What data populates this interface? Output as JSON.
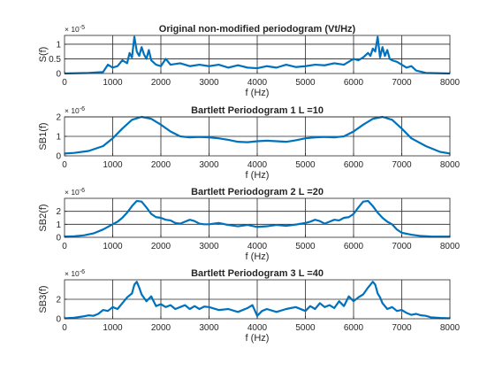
{
  "colors": {
    "line": "#0072BD",
    "axes": "#262626",
    "grid": "#262626",
    "background": "#ffffff"
  },
  "chart_data": [
    {
      "type": "line",
      "title": "Original non-modified periodogram (Vt/Hz)",
      "xlabel": "f (Hz)",
      "ylabel": "S(f)",
      "exponent": "× 10",
      "exponent_power": "-5",
      "xlim": [
        0,
        8000
      ],
      "ylim": [
        0,
        1.3
      ],
      "xticks": [
        0,
        1000,
        2000,
        3000,
        4000,
        5000,
        6000,
        7000,
        8000
      ],
      "yticks": [
        0,
        0.5,
        1
      ],
      "yticklabels": [
        "0",
        "0.5",
        "1"
      ],
      "grid": true,
      "series": [
        {
          "x": [
            0,
            500,
            800,
            900,
            1000,
            1100,
            1200,
            1300,
            1350,
            1400,
            1450,
            1500,
            1550,
            1600,
            1650,
            1700,
            1750,
            1800,
            1900,
            2000,
            2100,
            2200,
            2400,
            2600,
            2800,
            3000,
            3200,
            3400,
            3600,
            3800,
            4000,
            4200,
            4400,
            4600,
            4800,
            5000,
            5200,
            5400,
            5600,
            5800,
            6000,
            6100,
            6200,
            6300,
            6350,
            6400,
            6450,
            6500,
            6550,
            6600,
            6650,
            6700,
            6750,
            6800,
            6900,
            7000,
            7100,
            7200,
            7300,
            7500,
            8000
          ],
          "y": [
            0,
            0.02,
            0.05,
            0.3,
            0.2,
            0.25,
            0.45,
            0.35,
            0.7,
            0.55,
            1.25,
            0.75,
            0.6,
            0.9,
            0.65,
            0.5,
            0.8,
            0.45,
            0.3,
            0.25,
            0.5,
            0.3,
            0.35,
            0.25,
            0.3,
            0.25,
            0.3,
            0.2,
            0.28,
            0.2,
            0.18,
            0.25,
            0.2,
            0.3,
            0.22,
            0.25,
            0.3,
            0.28,
            0.35,
            0.3,
            0.5,
            0.45,
            0.55,
            0.7,
            0.6,
            0.85,
            0.75,
            1.25,
            0.55,
            0.9,
            0.6,
            0.8,
            0.5,
            0.45,
            0.4,
            0.3,
            0.2,
            0.25,
            0.1,
            0.02,
            0
          ]
        }
      ]
    },
    {
      "type": "line",
      "title": "Bartlett Periodogram 1 L =10",
      "xlabel": "f (Hz)",
      "ylabel": "SB1(f)",
      "exponent": "× 10",
      "exponent_power": "-6",
      "xlim": [
        0,
        8000
      ],
      "ylim": [
        0,
        2
      ],
      "xticks": [
        0,
        1000,
        2000,
        3000,
        4000,
        5000,
        6000,
        7000,
        8000
      ],
      "yticks": [
        0,
        1,
        2
      ],
      "yticklabels": [
        "0",
        "1",
        "2"
      ],
      "grid": true,
      "series": [
        {
          "x": [
            0,
            200,
            500,
            800,
            1000,
            1200,
            1400,
            1600,
            1800,
            2000,
            2200,
            2400,
            2600,
            2800,
            3000,
            3200,
            3400,
            3600,
            3800,
            4000,
            4200,
            4400,
            4600,
            4800,
            5000,
            5200,
            5400,
            5600,
            5800,
            6000,
            6200,
            6400,
            6600,
            6800,
            7000,
            7200,
            7500,
            7800,
            8000
          ],
          "y": [
            0.12,
            0.15,
            0.25,
            0.5,
            0.9,
            1.4,
            1.85,
            2.0,
            1.9,
            1.6,
            1.25,
            1.0,
            0.95,
            0.97,
            0.95,
            0.9,
            0.82,
            0.72,
            0.7,
            0.75,
            0.78,
            0.75,
            0.72,
            0.8,
            0.9,
            0.95,
            0.97,
            0.95,
            1.0,
            1.25,
            1.6,
            1.9,
            2.0,
            1.85,
            1.4,
            0.9,
            0.5,
            0.2,
            0.12
          ]
        }
      ]
    },
    {
      "type": "line",
      "title": "Bartlett Periodogram 2 L =20",
      "xlabel": "f (Hz)",
      "ylabel": "SB2(f)",
      "exponent": "× 10",
      "exponent_power": "-6",
      "xlim": [
        0,
        8000
      ],
      "ylim": [
        0,
        3
      ],
      "xticks": [
        0,
        1000,
        2000,
        3000,
        4000,
        5000,
        6000,
        7000,
        8000
      ],
      "yticks": [
        0,
        1,
        2
      ],
      "yticklabels": [
        "0",
        "1",
        "2"
      ],
      "grid": true,
      "series": [
        {
          "x": [
            0,
            200,
            400,
            600,
            800,
            1000,
            1100,
            1200,
            1300,
            1400,
            1500,
            1600,
            1700,
            1800,
            1900,
            2000,
            2100,
            2200,
            2300,
            2400,
            2500,
            2600,
            2700,
            2800,
            2900,
            3000,
            3200,
            3400,
            3600,
            3800,
            4000,
            4200,
            4400,
            4600,
            4800,
            5000,
            5100,
            5200,
            5300,
            5400,
            5500,
            5600,
            5700,
            5800,
            5900,
            6000,
            6100,
            6200,
            6300,
            6400,
            6500,
            6600,
            6700,
            6800,
            6900,
            7000,
            7200,
            7400,
            7600,
            7800,
            8000
          ],
          "y": [
            0.05,
            0.08,
            0.15,
            0.3,
            0.6,
            1.0,
            1.2,
            1.5,
            1.9,
            2.4,
            2.8,
            2.75,
            2.3,
            1.8,
            1.55,
            1.5,
            1.35,
            1.3,
            1.1,
            1.05,
            1.2,
            1.35,
            1.25,
            1.05,
            1.0,
            1.0,
            1.1,
            0.95,
            0.85,
            0.95,
            0.8,
            0.85,
            0.95,
            0.88,
            0.98,
            1.1,
            1.2,
            1.35,
            1.25,
            1.05,
            1.2,
            1.35,
            1.3,
            1.5,
            1.55,
            1.8,
            2.3,
            2.75,
            2.8,
            2.4,
            1.9,
            1.5,
            1.2,
            1.0,
            0.6,
            0.35,
            0.2,
            0.1,
            0.06,
            0.05,
            0.05
          ]
        }
      ]
    },
    {
      "type": "line",
      "title": "Bartlett Periodogram 3 L =40",
      "xlabel": "f (Hz)",
      "ylabel": "SB3(f)",
      "exponent": "× 10",
      "exponent_power": "-6",
      "xlim": [
        0,
        8000
      ],
      "ylim": [
        0,
        4
      ],
      "xticks": [
        0,
        1000,
        2000,
        3000,
        4000,
        5000,
        6000,
        7000,
        8000
      ],
      "yticks": [
        0,
        2
      ],
      "yticklabels": [
        "0",
        "2"
      ],
      "grid": true,
      "series": [
        {
          "x": [
            0,
            200,
            400,
            500,
            600,
            700,
            800,
            900,
            1000,
            1100,
            1200,
            1300,
            1400,
            1450,
            1500,
            1550,
            1600,
            1700,
            1800,
            1900,
            2000,
            2100,
            2200,
            2300,
            2400,
            2500,
            2600,
            2700,
            2800,
            2900,
            3000,
            3200,
            3400,
            3600,
            3800,
            3900,
            4000,
            4100,
            4200,
            4400,
            4600,
            4800,
            5000,
            5100,
            5200,
            5300,
            5400,
            5500,
            5600,
            5700,
            5800,
            5900,
            6000,
            6100,
            6200,
            6300,
            6400,
            6450,
            6500,
            6550,
            6600,
            6700,
            6800,
            6900,
            7000,
            7100,
            7200,
            7300,
            7400,
            7500,
            7600,
            7800,
            8000
          ],
          "y": [
            0.05,
            0.1,
            0.25,
            0.35,
            0.3,
            0.5,
            0.9,
            0.8,
            1.2,
            1.0,
            1.6,
            2.2,
            2.6,
            3.5,
            3.8,
            3.2,
            2.5,
            1.8,
            2.3,
            1.3,
            1.5,
            1.2,
            1.4,
            1.0,
            1.2,
            1.4,
            1.0,
            1.3,
            1.0,
            1.25,
            1.2,
            0.9,
            1.0,
            0.7,
            1.1,
            1.4,
            0.3,
            0.8,
            1.0,
            0.7,
            1.0,
            1.2,
            0.8,
            1.3,
            1.0,
            1.6,
            1.2,
            1.4,
            1.1,
            1.8,
            1.3,
            2.3,
            1.8,
            2.2,
            2.5,
            3.2,
            3.8,
            3.5,
            2.6,
            2.2,
            1.6,
            1.0,
            1.2,
            0.8,
            0.9,
            0.6,
            0.4,
            0.5,
            0.35,
            0.3,
            0.15,
            0.08,
            0.05
          ]
        }
      ]
    }
  ]
}
